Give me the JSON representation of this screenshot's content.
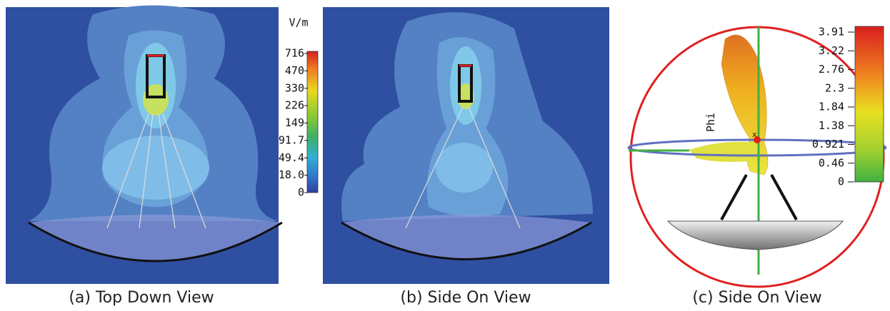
{
  "panels": [
    {
      "caption": "(a) Top Down View",
      "colorbar": {
        "unit": "V/m",
        "labels": [
          "716",
          "470",
          "330",
          "226",
          "149",
          "91.7",
          "49.4",
          "18.0",
          "0"
        ]
      }
    },
    {
      "caption": "(b) Side On View"
    },
    {
      "caption": "(c) Side On View",
      "axis_label": "Phi",
      "marker": "x",
      "colorbar": {
        "labels": [
          "3.91",
          "3.22",
          "2.76",
          "2.3",
          "1.84",
          "1.38",
          "0.921",
          "0.46",
          "0"
        ]
      }
    }
  ]
}
